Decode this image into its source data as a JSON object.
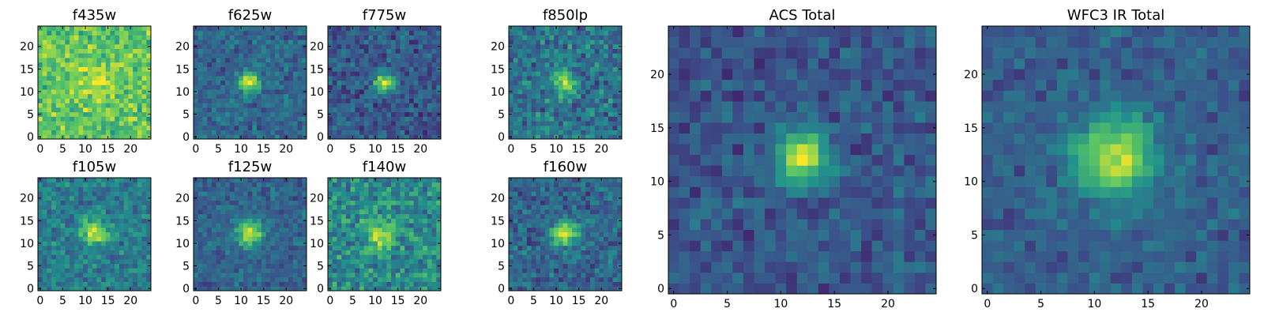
{
  "figure_title": "",
  "colors": {
    "colormap": [
      "#440154",
      "#3b528b",
      "#21918c",
      "#5ec962",
      "#fde725"
    ],
    "axis": "#000000",
    "background": "#ffffff"
  },
  "chart_data": [
    {
      "type": "heatmap",
      "title": "f435w",
      "grid_size": 25,
      "xlim": [
        -0.5,
        24.5
      ],
      "ylim": [
        -0.5,
        24.5
      ],
      "x_ticks": [
        0,
        5,
        10,
        15,
        20
      ],
      "y_ticks": [
        0,
        5,
        10,
        15,
        20
      ],
      "source_center": [
        12,
        12
      ],
      "source_peak": 0.15,
      "source_sigma": 4.0,
      "background_level": 0.72,
      "noise_amplitude": 0.25,
      "seed": 435
    },
    {
      "type": "heatmap",
      "title": "f625w",
      "grid_size": 25,
      "xlim": [
        -0.5,
        24.5
      ],
      "ylim": [
        -0.5,
        24.5
      ],
      "x_ticks": [
        0,
        5,
        10,
        15,
        20
      ],
      "y_ticks": [
        0,
        5,
        10,
        15,
        20
      ],
      "source_center": [
        12,
        12
      ],
      "source_peak": 0.62,
      "source_sigma": 1.6,
      "background_level": 0.33,
      "noise_amplitude": 0.18,
      "seed": 625
    },
    {
      "type": "heatmap",
      "title": "f775w",
      "grid_size": 25,
      "xlim": [
        -0.5,
        24.5
      ],
      "ylim": [
        -0.5,
        24.5
      ],
      "x_ticks": [
        0,
        5,
        10,
        15,
        20
      ],
      "y_ticks": [
        0,
        5,
        10,
        15,
        20
      ],
      "source_center": [
        12,
        12
      ],
      "source_peak": 0.64,
      "source_sigma": 1.5,
      "background_level": 0.28,
      "noise_amplitude": 0.2,
      "seed": 775
    },
    {
      "type": "heatmap",
      "title": "f850lp",
      "grid_size": 25,
      "xlim": [
        -0.5,
        24.5
      ],
      "ylim": [
        -0.5,
        24.5
      ],
      "x_ticks": [
        0,
        5,
        10,
        15,
        20
      ],
      "y_ticks": [
        0,
        5,
        10,
        15,
        20
      ],
      "source_center": [
        12,
        12
      ],
      "source_peak": 0.55,
      "source_sigma": 1.7,
      "background_level": 0.38,
      "noise_amplitude": 0.24,
      "seed": 850
    },
    {
      "type": "heatmap",
      "title": "ACS Total",
      "grid_size": 25,
      "xlim": [
        -0.5,
        24.5
      ],
      "ylim": [
        -0.5,
        24.5
      ],
      "x_ticks": [
        0,
        5,
        10,
        15,
        20
      ],
      "y_ticks": [
        0,
        5,
        10,
        15,
        20
      ],
      "source_center": [
        12,
        12.3
      ],
      "source_peak": 0.68,
      "source_sigma": 1.7,
      "background_level": 0.27,
      "noise_amplitude": 0.16,
      "seed": 1001
    },
    {
      "type": "heatmap",
      "title": "WFC3 IR Total",
      "grid_size": 25,
      "xlim": [
        -0.5,
        24.5
      ],
      "ylim": [
        -0.5,
        24.5
      ],
      "x_ticks": [
        0,
        5,
        10,
        15,
        20
      ],
      "y_ticks": [
        0,
        5,
        10,
        15,
        20
      ],
      "source_center": [
        12,
        12.3
      ],
      "source_peak": 0.62,
      "source_sigma": 2.6,
      "background_level": 0.3,
      "noise_amplitude": 0.14,
      "seed": 1002
    },
    {
      "type": "heatmap",
      "title": "f105w",
      "grid_size": 25,
      "xlim": [
        -0.5,
        24.5
      ],
      "ylim": [
        -0.5,
        24.5
      ],
      "x_ticks": [
        0,
        5,
        10,
        15,
        20
      ],
      "y_ticks": [
        0,
        5,
        10,
        15,
        20
      ],
      "source_center": [
        12,
        12.5
      ],
      "source_peak": 0.55,
      "source_sigma": 1.9,
      "background_level": 0.42,
      "noise_amplitude": 0.2,
      "seed": 105
    },
    {
      "type": "heatmap",
      "title": "f125w",
      "grid_size": 25,
      "xlim": [
        -0.5,
        24.5
      ],
      "ylim": [
        -0.5,
        24.5
      ],
      "x_ticks": [
        0,
        5,
        10,
        15,
        20
      ],
      "y_ticks": [
        0,
        5,
        10,
        15,
        20
      ],
      "source_center": [
        12,
        12.3
      ],
      "source_peak": 0.62,
      "source_sigma": 2.0,
      "background_level": 0.32,
      "noise_amplitude": 0.16,
      "seed": 125
    },
    {
      "type": "heatmap",
      "title": "f140w",
      "grid_size": 25,
      "xlim": [
        -0.5,
        24.5
      ],
      "ylim": [
        -0.5,
        24.5
      ],
      "x_ticks": [
        0,
        5,
        10,
        15,
        20
      ],
      "y_ticks": [
        0,
        5,
        10,
        15,
        20
      ],
      "source_center": [
        11.5,
        11.5
      ],
      "source_peak": 0.45,
      "source_sigma": 2.1,
      "background_level": 0.48,
      "noise_amplitude": 0.26,
      "seed": 140
    },
    {
      "type": "heatmap",
      "title": "f160w",
      "grid_size": 25,
      "xlim": [
        -0.5,
        24.5
      ],
      "ylim": [
        -0.5,
        24.5
      ],
      "x_ticks": [
        0,
        5,
        10,
        15,
        20
      ],
      "y_ticks": [
        0,
        5,
        10,
        15,
        20
      ],
      "source_center": [
        12,
        12.3
      ],
      "source_peak": 0.6,
      "source_sigma": 2.0,
      "background_level": 0.33,
      "noise_amplitude": 0.2,
      "seed": 160
    }
  ]
}
